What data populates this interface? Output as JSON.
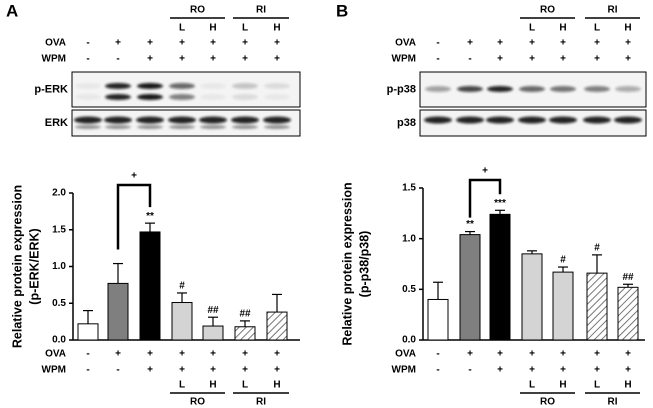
{
  "chart_data": [
    {
      "type": "bar",
      "panel": "A",
      "blots": [
        "p-ERK",
        "ERK"
      ],
      "ylabel": [
        "Relative protein expression",
        "(p-ERK/ERK)"
      ],
      "treatments": {
        "rows": [
          {
            "name": "OVA",
            "signs": [
              "-",
              "+",
              "+",
              "+",
              "+",
              "+",
              "+"
            ]
          },
          {
            "name": "WPM",
            "signs": [
              "-",
              "-",
              "+",
              "+",
              "+",
              "+",
              "+"
            ]
          }
        ],
        "doses": [
          null,
          null,
          null,
          "L",
          "H",
          "L",
          "H"
        ],
        "groups": [
          "RO",
          "RI"
        ]
      },
      "values": [
        0.22,
        0.77,
        1.47,
        0.51,
        0.19,
        0.18,
        0.38
      ],
      "errors": [
        0.18,
        0.27,
        0.12,
        0.13,
        0.12,
        0.08,
        0.24
      ],
      "annotations": [
        null,
        null,
        "**",
        "#",
        "##",
        "##",
        null
      ],
      "colors": [
        "#ffffff",
        "#7f7f7f",
        "#000000",
        "#d4d4d4",
        "#d4d4d4",
        "#ffffff",
        "#ffffff"
      ],
      "hatched": [
        false,
        false,
        false,
        false,
        false,
        true,
        true
      ],
      "bracket_label": "+",
      "ylim": [
        0,
        2
      ],
      "yticks": [
        {
          "value": 0,
          "label": "0.0"
        },
        {
          "value": 0.5,
          "label": "0.5"
        },
        {
          "value": 1,
          "label": "1.0"
        },
        {
          "value": 1.5,
          "label": "1.5"
        },
        {
          "value": 2,
          "label": "2.0"
        }
      ]
    },
    {
      "type": "bar",
      "panel": "B",
      "blots": [
        "p-p38",
        "p38"
      ],
      "ylabel": [
        "Relative protein expression",
        "(p-p38/p38)"
      ],
      "treatments": {
        "rows": [
          {
            "name": "OVA",
            "signs": [
              "-",
              "+",
              "+",
              "+",
              "+",
              "+",
              "+"
            ]
          },
          {
            "name": "WPM",
            "signs": [
              "-",
              "-",
              "+",
              "+",
              "+",
              "+",
              "+"
            ]
          }
        ],
        "doses": [
          null,
          null,
          null,
          "L",
          "H",
          "L",
          "H"
        ],
        "groups": [
          "RO",
          "RI"
        ]
      },
      "values": [
        0.4,
        1.04,
        1.24,
        0.85,
        0.67,
        0.66,
        0.52
      ],
      "errors": [
        0.17,
        0.03,
        0.04,
        0.03,
        0.05,
        0.18,
        0.03
      ],
      "annotations": [
        null,
        "**",
        "***",
        null,
        "#",
        "#",
        "##"
      ],
      "colors": [
        "#ffffff",
        "#7f7f7f",
        "#000000",
        "#d4d4d4",
        "#d4d4d4",
        "#ffffff",
        "#ffffff"
      ],
      "hatched": [
        false,
        false,
        false,
        false,
        false,
        true,
        true
      ],
      "bracket_label": "+",
      "ylim": [
        0,
        1.5
      ],
      "yticks": [
        {
          "value": 0,
          "label": "0.0"
        },
        {
          "value": 0.5,
          "label": "0.5"
        },
        {
          "value": 1,
          "label": "1.0"
        },
        {
          "value": 1.5,
          "label": "1.5"
        }
      ]
    }
  ]
}
